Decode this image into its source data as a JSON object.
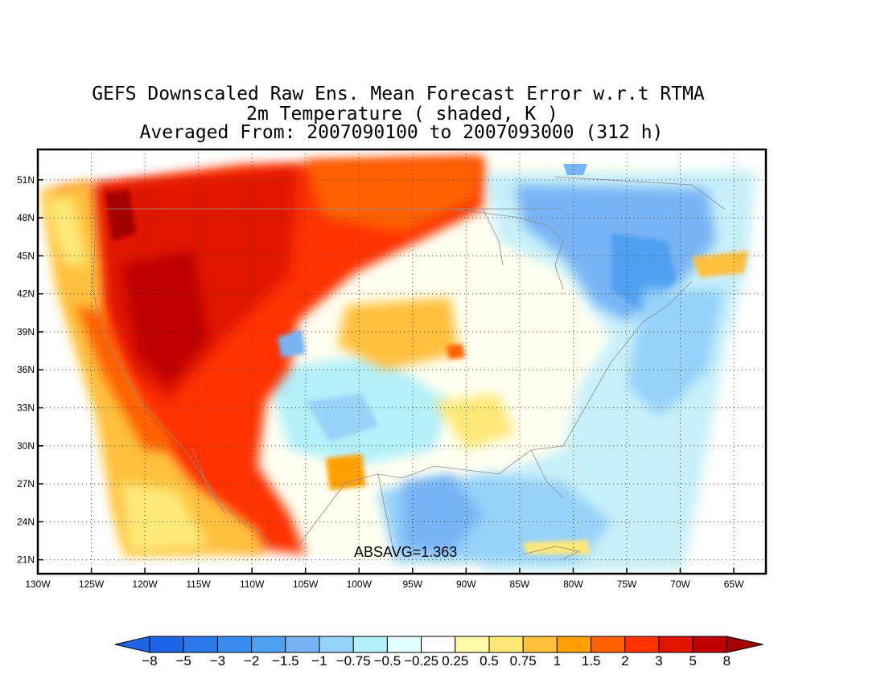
{
  "title": {
    "line1": "GEFS Downscaled Raw Ens. Mean Forecast Error w.r.t RTMA",
    "line2": "2m Temperature ( shaded, K )",
    "line3": "Averaged From: 2007090100 to 2007093000 (312 h)"
  },
  "absavg_text": "ABSAVG=1.363",
  "map": {
    "lon_ticks": [
      "130W",
      "125W",
      "120W",
      "115W",
      "110W",
      "105W",
      "100W",
      "95W",
      "90W",
      "85W",
      "80W",
      "75W",
      "70W",
      "65W"
    ],
    "lat_ticks": [
      "51N",
      "48N",
      "45N",
      "42N",
      "39N",
      "36N",
      "33N",
      "30N",
      "27N",
      "24N",
      "21N"
    ],
    "lon_range": [
      -130,
      -62
    ],
    "lat_range": [
      19.9,
      53.4
    ],
    "grid": "dotted",
    "land_color": "#ffffff"
  },
  "colorbar": {
    "labels": [
      "−8",
      "−5",
      "−3",
      "−2",
      "−1.5",
      "−1",
      "−0.75",
      "−0.5",
      "−0.25",
      "0.25",
      "0.5",
      "0.75",
      "1",
      "1.5",
      "2",
      "3",
      "5",
      "8"
    ],
    "colors": [
      "#1e64e6",
      "#2d78eb",
      "#3c8cf0",
      "#50a0f0",
      "#78b4f5",
      "#96d2fa",
      "#b4f0fa",
      "#e1ffff",
      "#ffffff",
      "#fffaaa",
      "#ffe878",
      "#ffc03c",
      "#ffa000",
      "#ff6000",
      "#ff3200",
      "#e11400",
      "#c00000",
      "#a50000"
    ]
  },
  "regions": [
    {
      "name": "west-warm",
      "level": "3"
    },
    {
      "name": "northwest-warm",
      "level": "5"
    },
    {
      "name": "southwest-coast",
      "level": "0.75"
    },
    {
      "name": "central-mixed",
      "level": "0.25"
    },
    {
      "name": "east-cool",
      "level": "-1"
    },
    {
      "name": "atlantic-cool",
      "level": "-0.5"
    },
    {
      "name": "gulf-cool",
      "level": "-1"
    }
  ]
}
